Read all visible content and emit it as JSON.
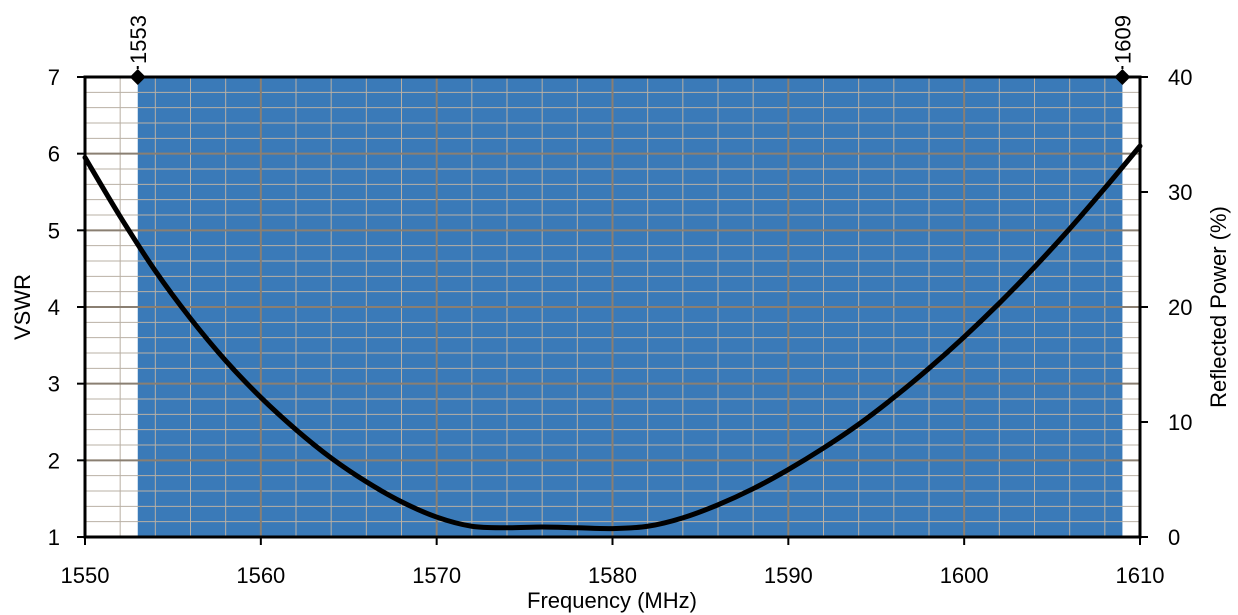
{
  "chart_data": {
    "type": "line",
    "title": "",
    "xlabel": "Frequency (MHz)",
    "ylabel": "VSWR",
    "y2label": "Reflected Power (%)",
    "xlim": [
      1550,
      1610
    ],
    "ylim": [
      1,
      7
    ],
    "y2lim": [
      0,
      40
    ],
    "x_ticks": [
      1550,
      1560,
      1570,
      1580,
      1590,
      1600,
      1610
    ],
    "y_ticks": [
      1,
      2,
      3,
      4,
      5,
      6,
      7
    ],
    "y2_ticks": [
      0,
      10,
      20,
      30,
      40
    ],
    "grid": true,
    "band": {
      "start": 1553,
      "end": 1609,
      "color": "#3a7ab8"
    },
    "markers": [
      {
        "x": 1553,
        "label": "1553"
      },
      {
        "x": 1609,
        "label": "1609"
      }
    ],
    "series": [
      {
        "x": [
          1550,
          1552,
          1554,
          1556,
          1558,
          1560,
          1562,
          1564,
          1566,
          1568,
          1570,
          1572,
          1574,
          1576,
          1578,
          1580,
          1582,
          1584,
          1586,
          1588,
          1590,
          1592,
          1594,
          1596,
          1598,
          1600,
          1602,
          1604,
          1606,
          1608,
          1610
        ],
        "y": [
          5.95,
          5.18,
          4.47,
          3.85,
          3.3,
          2.82,
          2.4,
          2.03,
          1.72,
          1.46,
          1.26,
          1.14,
          1.12,
          1.13,
          1.12,
          1.11,
          1.14,
          1.25,
          1.42,
          1.63,
          1.88,
          2.16,
          2.47,
          2.82,
          3.2,
          3.61,
          4.05,
          4.52,
          5.02,
          5.55,
          6.1
        ],
        "color": "#000000"
      }
    ]
  }
}
